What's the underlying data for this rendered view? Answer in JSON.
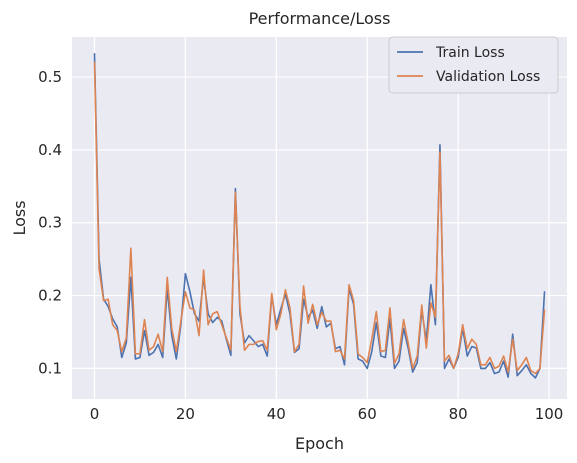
{
  "chart_data": {
    "type": "line",
    "title": "Performance/Loss",
    "xlabel": "Epoch",
    "ylabel": "Loss",
    "xlim": [
      -4.95,
      103.95
    ],
    "ylim": [
      0.058,
      0.555
    ],
    "xticks": [
      0,
      20,
      40,
      60,
      80,
      100
    ],
    "yticks": [
      0.1,
      0.2,
      0.3,
      0.4,
      0.5
    ],
    "ytick_labels": [
      "0.1",
      "0.2",
      "0.3",
      "0.4",
      "0.5"
    ],
    "grid": true,
    "legend_position": "top-right",
    "x": [
      0,
      1,
      2,
      3,
      4,
      5,
      6,
      7,
      8,
      9,
      10,
      11,
      12,
      13,
      14,
      15,
      16,
      17,
      18,
      19,
      20,
      21,
      22,
      23,
      24,
      25,
      26,
      27,
      28,
      29,
      30,
      31,
      32,
      33,
      34,
      35,
      36,
      37,
      38,
      39,
      40,
      41,
      42,
      43,
      44,
      45,
      46,
      47,
      48,
      49,
      50,
      51,
      52,
      53,
      54,
      55,
      56,
      57,
      58,
      59,
      60,
      61,
      62,
      63,
      64,
      65,
      66,
      67,
      68,
      69,
      70,
      71,
      72,
      73,
      74,
      75,
      76,
      77,
      78,
      79,
      80,
      81,
      82,
      83,
      84,
      85,
      86,
      87,
      88,
      89,
      90,
      91,
      92,
      93,
      94,
      95,
      96,
      97,
      98,
      99
    ],
    "series": [
      {
        "name": "Train Loss",
        "color": "#4c72b0",
        "values": [
          0.532,
          0.25,
          0.195,
          0.185,
          0.168,
          0.157,
          0.115,
          0.135,
          0.225,
          0.113,
          0.115,
          0.152,
          0.118,
          0.122,
          0.133,
          0.115,
          0.21,
          0.145,
          0.113,
          0.16,
          0.23,
          0.205,
          0.175,
          0.165,
          0.225,
          0.175,
          0.163,
          0.17,
          0.165,
          0.14,
          0.118,
          0.347,
          0.175,
          0.135,
          0.145,
          0.138,
          0.13,
          0.133,
          0.117,
          0.2,
          0.16,
          0.182,
          0.202,
          0.175,
          0.122,
          0.127,
          0.195,
          0.17,
          0.18,
          0.155,
          0.185,
          0.157,
          0.162,
          0.127,
          0.13,
          0.105,
          0.21,
          0.188,
          0.113,
          0.11,
          0.1,
          0.123,
          0.163,
          0.117,
          0.115,
          0.168,
          0.1,
          0.11,
          0.155,
          0.128,
          0.095,
          0.108,
          0.18,
          0.138,
          0.215,
          0.16,
          0.407,
          0.1,
          0.113,
          0.1,
          0.115,
          0.155,
          0.117,
          0.13,
          0.128,
          0.1,
          0.1,
          0.108,
          0.093,
          0.095,
          0.11,
          0.088,
          0.147,
          0.09,
          0.097,
          0.105,
          0.093,
          0.087,
          0.1,
          0.205
        ]
      },
      {
        "name": "Validation Loss",
        "color": "#dd8452",
        "values": [
          0.52,
          0.237,
          0.193,
          0.195,
          0.16,
          0.152,
          0.123,
          0.142,
          0.265,
          0.12,
          0.12,
          0.167,
          0.125,
          0.13,
          0.147,
          0.123,
          0.225,
          0.155,
          0.123,
          0.165,
          0.205,
          0.183,
          0.18,
          0.145,
          0.235,
          0.16,
          0.175,
          0.178,
          0.16,
          0.142,
          0.125,
          0.342,
          0.185,
          0.125,
          0.133,
          0.133,
          0.137,
          0.138,
          0.125,
          0.203,
          0.153,
          0.175,
          0.208,
          0.183,
          0.123,
          0.133,
          0.213,
          0.162,
          0.188,
          0.16,
          0.177,
          0.165,
          0.165,
          0.123,
          0.125,
          0.113,
          0.215,
          0.193,
          0.12,
          0.115,
          0.108,
          0.14,
          0.178,
          0.123,
          0.125,
          0.183,
          0.107,
          0.12,
          0.167,
          0.135,
          0.1,
          0.117,
          0.187,
          0.128,
          0.19,
          0.17,
          0.397,
          0.11,
          0.118,
          0.1,
          0.12,
          0.16,
          0.127,
          0.14,
          0.133,
          0.105,
          0.105,
          0.115,
          0.1,
          0.103,
          0.117,
          0.095,
          0.14,
          0.097,
          0.105,
          0.115,
          0.097,
          0.093,
          0.1,
          0.18
        ]
      }
    ]
  }
}
